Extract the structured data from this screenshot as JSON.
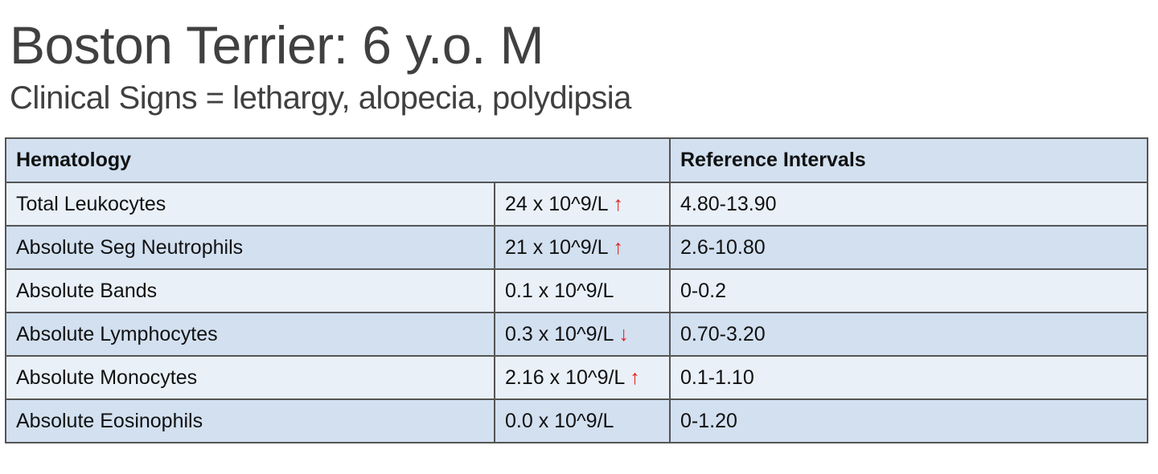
{
  "title": "Boston Terrier: 6 y.o. M",
  "subtitle": "Clinical Signs = lethargy, alopecia, polydipsia",
  "table": {
    "header": {
      "hematology": "Hematology",
      "reference": "Reference Intervals"
    },
    "rows": [
      {
        "test": "Total Leukocytes",
        "value": "24 x 10^9/L",
        "flag": "up",
        "reference": "4.80-13.90"
      },
      {
        "test": "Absolute Seg Neutrophils",
        "value": "21 x 10^9/L",
        "flag": "up",
        "reference": "2.6-10.80"
      },
      {
        "test": "Absolute Bands",
        "value": "0.1  x 10^9/L",
        "flag": "",
        "reference": "0-0.2"
      },
      {
        "test": "Absolute Lymphocytes",
        "value": "0.3 x 10^9/L",
        "flag": "down",
        "reference": "0.70-3.20"
      },
      {
        "test": "Absolute Monocytes",
        "value": "2.16 x 10^9/L",
        "flag": "up",
        "reference": "0.1-1.10"
      },
      {
        "test": "Absolute Eosinophils",
        "value": "0.0 x 10^9/L",
        "flag": "",
        "reference": "0-1.20"
      }
    ]
  },
  "colors": {
    "header_bg": "#d2e0f0",
    "row_light": "#e9f0f8",
    "row_dark": "#d2e0f0",
    "arrow": "#e52020"
  }
}
